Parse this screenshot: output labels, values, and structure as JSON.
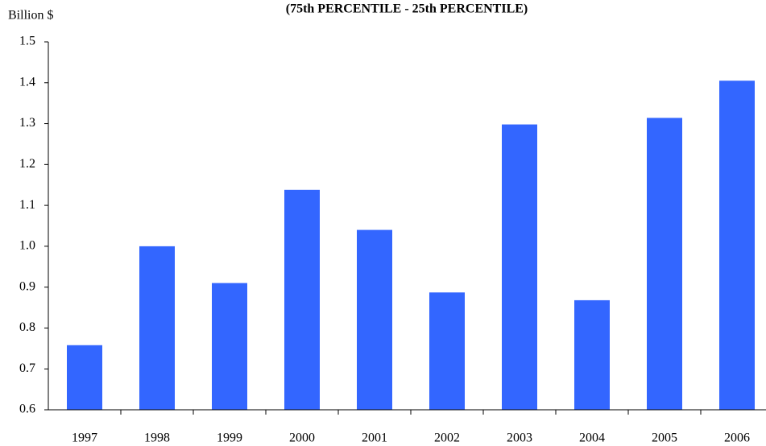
{
  "chart_data": {
    "type": "bar",
    "title": "(75th PERCENTILE - 25th PERCENTILE)",
    "y_label": "Billion $",
    "categories": [
      "1997",
      "1998",
      "1999",
      "2000",
      "2001",
      "2002",
      "2003",
      "2004",
      "2005",
      "2006"
    ],
    "values": [
      0.758,
      1.0,
      0.91,
      1.138,
      1.04,
      0.887,
      1.298,
      0.868,
      1.314,
      1.405
    ],
    "color": "#3366ff",
    "ylim": [
      0.6,
      1.5
    ],
    "yticks": [
      0.6,
      0.7,
      0.8,
      0.9,
      {
        "value": 1,
        "label": "1.0"
      },
      1.1,
      1.2,
      1.3,
      1.4,
      1.5
    ],
    "grid": false
  }
}
